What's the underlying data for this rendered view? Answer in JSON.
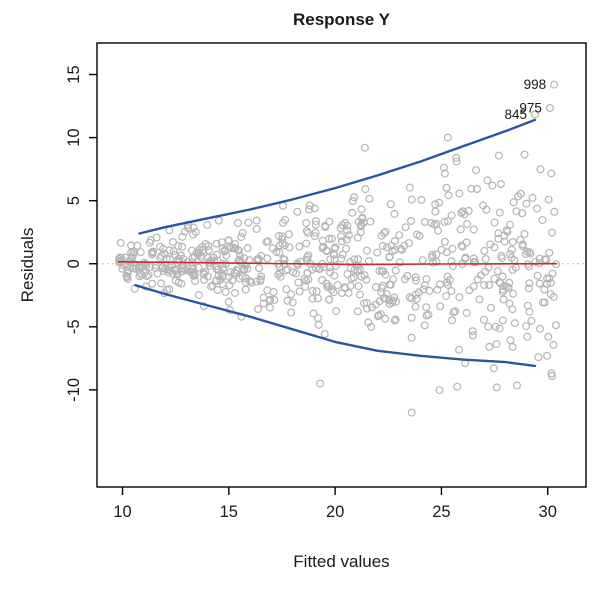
{
  "figure": {
    "background": "#ffffff"
  },
  "chart_data": {
    "type": "scatter",
    "title": "Response Y",
    "xlabel": "Fitted values",
    "ylabel": "Residuals",
    "xlim": [
      8.8,
      31.8
    ],
    "ylim": [
      -17.7,
      17.5
    ],
    "x_ticks": [
      10,
      15,
      20,
      25,
      30
    ],
    "y_ticks": [
      -10,
      -5,
      0,
      5,
      10,
      15
    ],
    "grid": false,
    "legend": "none",
    "point_color": "#b5b5b5",
    "axis_color": "#000000",
    "n_points": 680,
    "seed": 42,
    "x_start": 9.8,
    "x_span": 20.6,
    "spread_base": 0.75,
    "spread_slope": 0.155,
    "spread_power": 1.05,
    "zero_line": {
      "y": 0,
      "color": "#bdbdbd"
    },
    "red_line": {
      "color": "#cc2a2a",
      "points": [
        [
          9.8,
          0.15
        ],
        [
          13,
          0.1
        ],
        [
          17,
          0.02
        ],
        [
          21,
          -0.05
        ],
        [
          25,
          -0.02
        ],
        [
          30.4,
          0.0
        ]
      ]
    },
    "upper_envelope": {
      "color": "#2d53a5",
      "points": [
        [
          10.8,
          2.4
        ],
        [
          12,
          2.9
        ],
        [
          14,
          3.6
        ],
        [
          16,
          4.3
        ],
        [
          18,
          5.1
        ],
        [
          20,
          6.0
        ],
        [
          22,
          7.0
        ],
        [
          24,
          8.1
        ],
        [
          26,
          9.3
        ],
        [
          28,
          10.5
        ],
        [
          29.4,
          11.4
        ]
      ]
    },
    "lower_envelope": {
      "color": "#2d53a5",
      "points": [
        [
          10.6,
          -1.7
        ],
        [
          12,
          -2.4
        ],
        [
          14,
          -3.3
        ],
        [
          16,
          -4.2
        ],
        [
          18,
          -5.2
        ],
        [
          20,
          -6.2
        ],
        [
          22,
          -6.9
        ],
        [
          24,
          -7.3
        ],
        [
          26,
          -7.6
        ],
        [
          28,
          -7.8
        ],
        [
          29.4,
          -8.1
        ]
      ]
    },
    "labeled_points": [
      {
        "label": "998",
        "x": 30.3,
        "y": 14.2
      },
      {
        "label": "975",
        "x": 30.1,
        "y": 12.35
      },
      {
        "label": "845",
        "x": 29.4,
        "y": 11.85
      }
    ],
    "extra_points": [
      [
        23.6,
        -11.8
      ],
      [
        19.3,
        -9.5
      ],
      [
        27.6,
        -9.8
      ],
      [
        30.2,
        -8.9
      ],
      [
        21.4,
        9.2
      ],
      [
        25.3,
        10.0
      ]
    ]
  }
}
